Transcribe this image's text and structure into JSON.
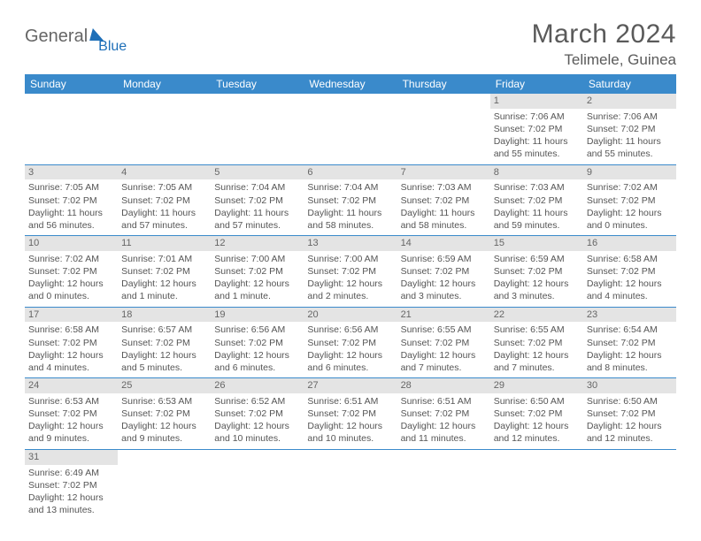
{
  "logo": {
    "part1": "General",
    "part2": "Blue"
  },
  "title": "March 2024",
  "location": "Telimele, Guinea",
  "colors": {
    "header_bg": "#3a8acb",
    "header_fg": "#ffffff",
    "daynum_bg": "#e4e4e4",
    "rule": "#3a8acb",
    "logo_accent": "#1e6fb8",
    "text": "#555555"
  },
  "weekday_labels": [
    "Sunday",
    "Monday",
    "Tuesday",
    "Wednesday",
    "Thursday",
    "Friday",
    "Saturday"
  ],
  "weeks": [
    [
      null,
      null,
      null,
      null,
      null,
      {
        "n": "1",
        "sr": "Sunrise: 7:06 AM",
        "ss": "Sunset: 7:02 PM",
        "d1": "Daylight: 11 hours",
        "d2": "and 55 minutes."
      },
      {
        "n": "2",
        "sr": "Sunrise: 7:06 AM",
        "ss": "Sunset: 7:02 PM",
        "d1": "Daylight: 11 hours",
        "d2": "and 55 minutes."
      }
    ],
    [
      {
        "n": "3",
        "sr": "Sunrise: 7:05 AM",
        "ss": "Sunset: 7:02 PM",
        "d1": "Daylight: 11 hours",
        "d2": "and 56 minutes."
      },
      {
        "n": "4",
        "sr": "Sunrise: 7:05 AM",
        "ss": "Sunset: 7:02 PM",
        "d1": "Daylight: 11 hours",
        "d2": "and 57 minutes."
      },
      {
        "n": "5",
        "sr": "Sunrise: 7:04 AM",
        "ss": "Sunset: 7:02 PM",
        "d1": "Daylight: 11 hours",
        "d2": "and 57 minutes."
      },
      {
        "n": "6",
        "sr": "Sunrise: 7:04 AM",
        "ss": "Sunset: 7:02 PM",
        "d1": "Daylight: 11 hours",
        "d2": "and 58 minutes."
      },
      {
        "n": "7",
        "sr": "Sunrise: 7:03 AM",
        "ss": "Sunset: 7:02 PM",
        "d1": "Daylight: 11 hours",
        "d2": "and 58 minutes."
      },
      {
        "n": "8",
        "sr": "Sunrise: 7:03 AM",
        "ss": "Sunset: 7:02 PM",
        "d1": "Daylight: 11 hours",
        "d2": "and 59 minutes."
      },
      {
        "n": "9",
        "sr": "Sunrise: 7:02 AM",
        "ss": "Sunset: 7:02 PM",
        "d1": "Daylight: 12 hours",
        "d2": "and 0 minutes."
      }
    ],
    [
      {
        "n": "10",
        "sr": "Sunrise: 7:02 AM",
        "ss": "Sunset: 7:02 PM",
        "d1": "Daylight: 12 hours",
        "d2": "and 0 minutes."
      },
      {
        "n": "11",
        "sr": "Sunrise: 7:01 AM",
        "ss": "Sunset: 7:02 PM",
        "d1": "Daylight: 12 hours",
        "d2": "and 1 minute."
      },
      {
        "n": "12",
        "sr": "Sunrise: 7:00 AM",
        "ss": "Sunset: 7:02 PM",
        "d1": "Daylight: 12 hours",
        "d2": "and 1 minute."
      },
      {
        "n": "13",
        "sr": "Sunrise: 7:00 AM",
        "ss": "Sunset: 7:02 PM",
        "d1": "Daylight: 12 hours",
        "d2": "and 2 minutes."
      },
      {
        "n": "14",
        "sr": "Sunrise: 6:59 AM",
        "ss": "Sunset: 7:02 PM",
        "d1": "Daylight: 12 hours",
        "d2": "and 3 minutes."
      },
      {
        "n": "15",
        "sr": "Sunrise: 6:59 AM",
        "ss": "Sunset: 7:02 PM",
        "d1": "Daylight: 12 hours",
        "d2": "and 3 minutes."
      },
      {
        "n": "16",
        "sr": "Sunrise: 6:58 AM",
        "ss": "Sunset: 7:02 PM",
        "d1": "Daylight: 12 hours",
        "d2": "and 4 minutes."
      }
    ],
    [
      {
        "n": "17",
        "sr": "Sunrise: 6:58 AM",
        "ss": "Sunset: 7:02 PM",
        "d1": "Daylight: 12 hours",
        "d2": "and 4 minutes."
      },
      {
        "n": "18",
        "sr": "Sunrise: 6:57 AM",
        "ss": "Sunset: 7:02 PM",
        "d1": "Daylight: 12 hours",
        "d2": "and 5 minutes."
      },
      {
        "n": "19",
        "sr": "Sunrise: 6:56 AM",
        "ss": "Sunset: 7:02 PM",
        "d1": "Daylight: 12 hours",
        "d2": "and 6 minutes."
      },
      {
        "n": "20",
        "sr": "Sunrise: 6:56 AM",
        "ss": "Sunset: 7:02 PM",
        "d1": "Daylight: 12 hours",
        "d2": "and 6 minutes."
      },
      {
        "n": "21",
        "sr": "Sunrise: 6:55 AM",
        "ss": "Sunset: 7:02 PM",
        "d1": "Daylight: 12 hours",
        "d2": "and 7 minutes."
      },
      {
        "n": "22",
        "sr": "Sunrise: 6:55 AM",
        "ss": "Sunset: 7:02 PM",
        "d1": "Daylight: 12 hours",
        "d2": "and 7 minutes."
      },
      {
        "n": "23",
        "sr": "Sunrise: 6:54 AM",
        "ss": "Sunset: 7:02 PM",
        "d1": "Daylight: 12 hours",
        "d2": "and 8 minutes."
      }
    ],
    [
      {
        "n": "24",
        "sr": "Sunrise: 6:53 AM",
        "ss": "Sunset: 7:02 PM",
        "d1": "Daylight: 12 hours",
        "d2": "and 9 minutes."
      },
      {
        "n": "25",
        "sr": "Sunrise: 6:53 AM",
        "ss": "Sunset: 7:02 PM",
        "d1": "Daylight: 12 hours",
        "d2": "and 9 minutes."
      },
      {
        "n": "26",
        "sr": "Sunrise: 6:52 AM",
        "ss": "Sunset: 7:02 PM",
        "d1": "Daylight: 12 hours",
        "d2": "and 10 minutes."
      },
      {
        "n": "27",
        "sr": "Sunrise: 6:51 AM",
        "ss": "Sunset: 7:02 PM",
        "d1": "Daylight: 12 hours",
        "d2": "and 10 minutes."
      },
      {
        "n": "28",
        "sr": "Sunrise: 6:51 AM",
        "ss": "Sunset: 7:02 PM",
        "d1": "Daylight: 12 hours",
        "d2": "and 11 minutes."
      },
      {
        "n": "29",
        "sr": "Sunrise: 6:50 AM",
        "ss": "Sunset: 7:02 PM",
        "d1": "Daylight: 12 hours",
        "d2": "and 12 minutes."
      },
      {
        "n": "30",
        "sr": "Sunrise: 6:50 AM",
        "ss": "Sunset: 7:02 PM",
        "d1": "Daylight: 12 hours",
        "d2": "and 12 minutes."
      }
    ],
    [
      {
        "n": "31",
        "sr": "Sunrise: 6:49 AM",
        "ss": "Sunset: 7:02 PM",
        "d1": "Daylight: 12 hours",
        "d2": "and 13 minutes."
      },
      null,
      null,
      null,
      null,
      null,
      null
    ]
  ]
}
